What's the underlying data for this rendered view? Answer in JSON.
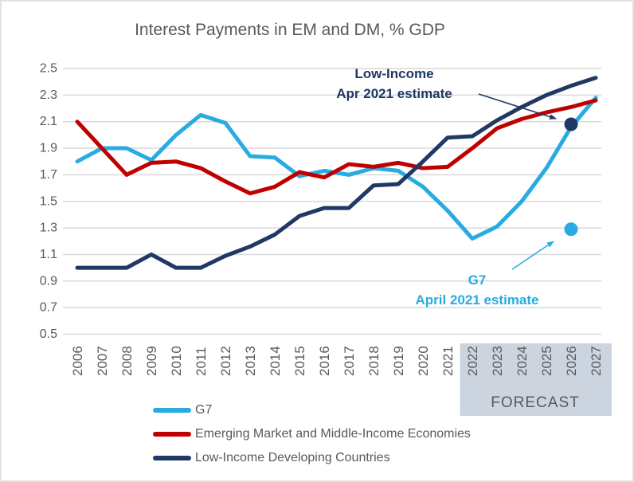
{
  "title": "Interest Payments in EM and DM, % GDP",
  "colors": {
    "g7": "#29abe2",
    "emerging": "#c00000",
    "low_income": "#1f3864",
    "gridline": "#d9d9d9",
    "axis_text": "#595959",
    "forecast_band": "#ccd4e0"
  },
  "chart_data": {
    "type": "line",
    "title": "Interest Payments in EM and DM, % GDP",
    "xlabel": "",
    "ylabel": "",
    "grid": true,
    "legend_position": "bottom-left",
    "ylim": [
      0.5,
      2.5
    ],
    "ytick_step": 0.2,
    "yticks": [
      "2.5",
      "2.3",
      "2.1",
      "1.9",
      "1.7",
      "1.5",
      "1.3",
      "1.1",
      "0.9",
      "0.7",
      "0.5"
    ],
    "x": [
      2006,
      2007,
      2008,
      2009,
      2010,
      2011,
      2012,
      2013,
      2014,
      2015,
      2016,
      2017,
      2018,
      2019,
      2020,
      2021,
      2022,
      2023,
      2024,
      2025,
      2026,
      2027
    ],
    "series": [
      {
        "name": "G7",
        "color": "#29abe2",
        "values": [
          1.8,
          1.9,
          1.9,
          1.81,
          2.0,
          2.15,
          2.09,
          1.84,
          1.83,
          1.69,
          1.73,
          1.7,
          1.75,
          1.73,
          1.61,
          1.43,
          1.22,
          1.31,
          1.5,
          1.75,
          2.06,
          2.28
        ]
      },
      {
        "name": "Emerging Market and Middle-Income Economies",
        "color": "#c00000",
        "values": [
          2.1,
          1.9,
          1.7,
          1.79,
          1.8,
          1.75,
          1.65,
          1.56,
          1.61,
          1.72,
          1.68,
          1.78,
          1.76,
          1.79,
          1.75,
          1.76,
          1.9,
          2.05,
          2.12,
          2.17,
          2.21,
          2.26
        ]
      },
      {
        "name": "Low-Income Developing Countries",
        "color": "#1f3864",
        "values": [
          1.0,
          1.0,
          1.0,
          1.1,
          1.0,
          1.0,
          1.09,
          1.16,
          1.25,
          1.39,
          1.45,
          1.45,
          1.62,
          1.63,
          1.8,
          1.98,
          1.99,
          2.11,
          2.21,
          2.3,
          2.37,
          2.43
        ]
      }
    ],
    "forecast_band": {
      "label": "FORECAST",
      "start_year": 2022,
      "end_year": 2027,
      "color": "#ccd4e0"
    },
    "annotations": [
      {
        "id": "low-income-estimate",
        "lines": [
          "Low-Income",
          "Apr 2021 estimate"
        ],
        "color": "#1f3864",
        "point_x": 2026,
        "point_y": 2.08
      },
      {
        "id": "g7-estimate",
        "lines": [
          "G7",
          "April 2021 estimate"
        ],
        "color": "#29abe2",
        "point_x": 2026,
        "point_y": 1.29
      }
    ]
  }
}
